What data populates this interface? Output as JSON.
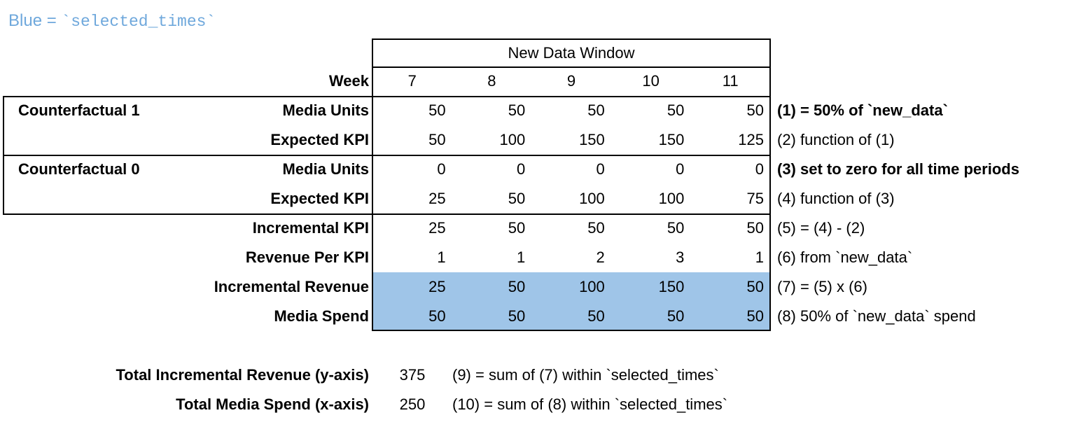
{
  "legend": {
    "prefix": "Blue = ",
    "code": "`selected_times`",
    "text_color": "#6FA8DC",
    "highlight_color": "#9FC5E8"
  },
  "table": {
    "header": "New Data Window",
    "week_label": "Week",
    "week_values": [
      "7",
      "8",
      "9",
      "10",
      "11"
    ],
    "groups": [
      "Counterfactual 1",
      "Counterfactual 0"
    ],
    "rows": [
      {
        "label": "Media Units",
        "values": [
          "50",
          "50",
          "50",
          "50",
          "50"
        ],
        "annotation": "(1) = 50% of `new_data`",
        "annotation_bold": true,
        "highlight": false
      },
      {
        "label": "Expected KPI",
        "values": [
          "50",
          "100",
          "150",
          "150",
          "125"
        ],
        "annotation": "(2) function of (1)",
        "annotation_bold": false,
        "highlight": false
      },
      {
        "label": "Media Units",
        "values": [
          "0",
          "0",
          "0",
          "0",
          "0"
        ],
        "annotation": "(3) set to zero for all time periods",
        "annotation_bold": true,
        "highlight": false
      },
      {
        "label": "Expected KPI",
        "values": [
          "25",
          "50",
          "100",
          "100",
          "75"
        ],
        "annotation": "(4) function of (3)",
        "annotation_bold": false,
        "highlight": false
      },
      {
        "label": "Incremental KPI",
        "values": [
          "25",
          "50",
          "50",
          "50",
          "50"
        ],
        "annotation": "(5) = (4) - (2)",
        "annotation_bold": false,
        "highlight": false
      },
      {
        "label": "Revenue Per KPI",
        "values": [
          "1",
          "1",
          "2",
          "3",
          "1"
        ],
        "annotation": "(6) from `new_data`",
        "annotation_bold": false,
        "highlight": false
      },
      {
        "label": "Incremental Revenue",
        "values": [
          "25",
          "50",
          "100",
          "150",
          "50"
        ],
        "annotation": "(7) = (5) x (6)",
        "annotation_bold": false,
        "highlight": true
      },
      {
        "label": "Media Spend",
        "values": [
          "50",
          "50",
          "50",
          "50",
          "50"
        ],
        "annotation": "(8) 50% of `new_data` spend",
        "annotation_bold": false,
        "highlight": true
      }
    ]
  },
  "totals": {
    "rows": [
      {
        "label": "Total Incremental Revenue (y-axis)",
        "value": "375",
        "annotation": "(9) = sum of (7) within `selected_times`"
      },
      {
        "label": "Total Media Spend (x-axis)",
        "value": "250",
        "annotation": "(10) = sum of (8) within `selected_times`"
      }
    ]
  }
}
